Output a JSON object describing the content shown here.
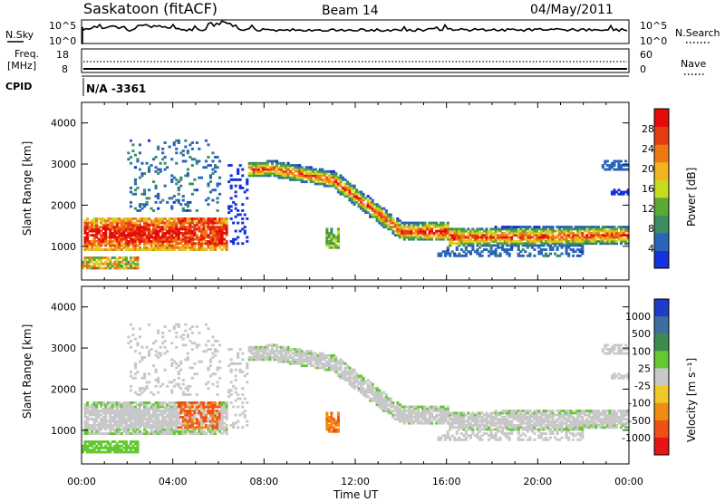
{
  "header": {
    "station": "Saskatoon (fitACF)",
    "beam": "Beam 14",
    "date": "04/May/2011"
  },
  "top_panels": {
    "nsky_label": "N.Sky",
    "nsky_ticks": [
      "10^5",
      "10^0"
    ],
    "nsearch_label": "N.Search",
    "nsearch_ticks": [
      "10^5",
      "10^0"
    ],
    "freq_label": "Freq.",
    "freq_unit": "[MHz]",
    "freq_ticks": [
      "18",
      "8"
    ],
    "nave_label": "Nave",
    "nave_ticks": [
      "60",
      "0"
    ],
    "cpid_label": "CPID",
    "cpid_value": "N/A -3361"
  },
  "chart_data": [
    {
      "type": "heatmap",
      "name": "power",
      "ylabel": "Slant Range [km]",
      "yticks": [
        1000,
        2000,
        3000,
        4000
      ],
      "ylim": [
        180,
        4500
      ],
      "xlim": [
        0,
        24
      ],
      "colorbar_label": "Power [dB]",
      "colorbar_ticks": [
        4,
        8,
        12,
        16,
        20,
        24,
        28
      ],
      "colorbar_colors": [
        "#1432dc",
        "#2a64b8",
        "#3c8c64",
        "#5aaa32",
        "#c8dc1e",
        "#f0b41e",
        "#f07814",
        "#e63c14",
        "#e60a0a"
      ]
    },
    {
      "type": "heatmap",
      "name": "velocity",
      "ylabel": "Slant Range [km]",
      "yticks": [
        1000,
        2000,
        3000,
        4000
      ],
      "ylim": [
        180,
        4500
      ],
      "xlim": [
        0,
        24
      ],
      "xlabel": "Time UT",
      "xticks": [
        "00:00",
        "04:00",
        "08:00",
        "12:00",
        "16:00",
        "20:00",
        "00:00"
      ],
      "colorbar_label": "Velocity [m s⁻¹]",
      "colorbar_ticks": [
        "1000",
        "500",
        "100",
        "25",
        "-25",
        "-100",
        "-500",
        "-1000"
      ],
      "colorbar_colors": [
        "#1e3cc8",
        "#3c6ea0",
        "#3c8c50",
        "#64c832",
        "#c8c8c8",
        "#f0c828",
        "#f08c14",
        "#f05014",
        "#e61414"
      ]
    }
  ]
}
